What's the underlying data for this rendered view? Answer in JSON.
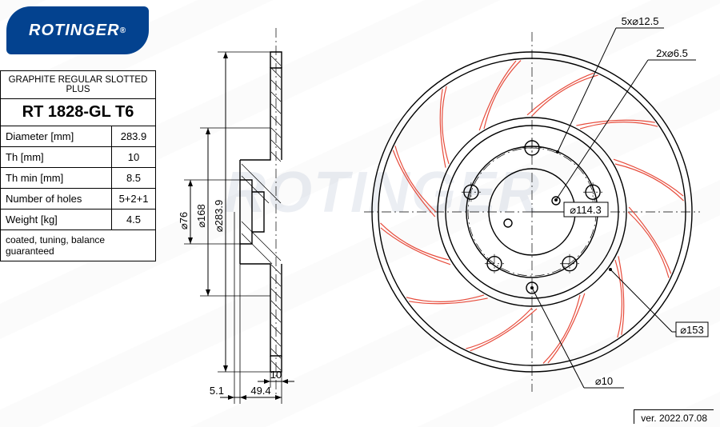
{
  "brand": "ROTINGER",
  "watermark": "ROTINGER",
  "product_line": "GRAPHITE REGULAR SLOTTED PLUS",
  "part_number": "RT 1828-GL T6",
  "specs": [
    {
      "label": "Diameter [mm]",
      "value": "283.9"
    },
    {
      "label": "Th [mm]",
      "value": "10"
    },
    {
      "label": "Th min [mm]",
      "value": "8.5"
    },
    {
      "label": "Number of holes",
      "value": "5+2+1"
    },
    {
      "label": "Weight [kg]",
      "value": "4.5"
    }
  ],
  "note": "coated, tuning, balance guaranteed",
  "version": "ver. 2022.07.08",
  "side_view": {
    "diameters_labeled": [
      "⌀76",
      "⌀168",
      "⌀283.9"
    ],
    "thickness_dim": "10",
    "offset_dim": "5.1",
    "depth_dim": "49.4"
  },
  "front_view": {
    "callouts": {
      "bolt_holes": "5x⌀12.5",
      "pin_holes": "2x⌀6.5",
      "bolt_circle": "⌀114.3",
      "small_hole": "⌀10",
      "slot_circle": "⌀153"
    },
    "slot_count": 12,
    "bolt_hole_count": 5,
    "pin_hole_count": 2,
    "center_hole_count": 1
  },
  "style": {
    "logo_bg": "#03428f",
    "logo_text": "#ffffff",
    "slot_color": "#e74c3c",
    "line_color": "#000000",
    "background": "#ffffff",
    "watermark_color": "rgba(0,40,100,0.08)",
    "dim_fontsize_pt": 10,
    "partno_fontsize_pt": 15
  }
}
